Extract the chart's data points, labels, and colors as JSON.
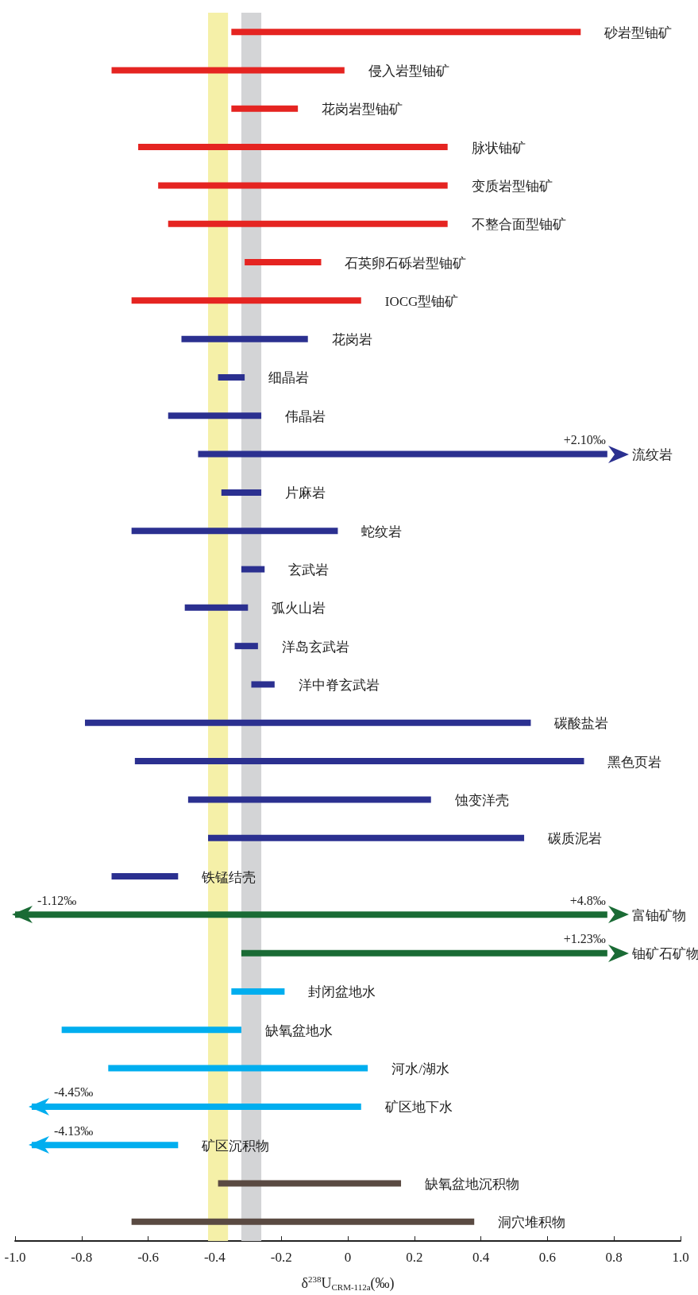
{
  "chart_data": {
    "type": "bar",
    "orientation": "horizontal",
    "xlabel": "δ$^{238}$U$_{CRM-112a}$(‰)",
    "categories": [
      "砂岩型铀矿",
      "侵入岩型铀矿",
      "花岗岩型铀矿",
      "脉状铀矿",
      "变质岩型铀矿",
      "不整合面型铀矿",
      "石英卵石砾岩型铀矿",
      "IOCG型铀矿",
      "花岗岩",
      "细晶岩",
      "伟晶岩",
      "流纹岩",
      "片麻岩",
      "蛇纹岩",
      "玄武岩",
      "弧火山岩",
      "洋岛玄武岩",
      "洋中脊玄武岩",
      "碳酸盐岩",
      "黑色页岩",
      "蚀变洋壳",
      "碳质泥岩",
      "铁锰结壳",
      "富铀矿物",
      "铀矿石矿物",
      "封闭盆地水",
      "缺氧盆地水",
      "河水/湖水",
      "矿区地下水",
      "矿区沉积物",
      "缺氧盆地沉积物",
      "洞穴堆积物"
    ],
    "base": [
      -0.35,
      -0.71,
      -0.35,
      -0.63,
      -0.57,
      -0.54,
      -0.31,
      -0.65,
      -0.5,
      -0.39,
      -0.54,
      -0.45,
      -0.38,
      -0.65,
      -0.32,
      -0.49,
      -0.34,
      -0.29,
      -0.79,
      -0.64,
      -0.48,
      -0.42,
      -0.71,
      -1.0,
      -0.32,
      -0.35,
      -0.86,
      -0.72,
      -0.95,
      -0.95,
      -0.39,
      -0.65
    ],
    "values": [
      1.05,
      0.7,
      0.2,
      0.93,
      0.87,
      0.84,
      0.23,
      0.69,
      0.38,
      0.08,
      0.28,
      1.23,
      0.12,
      0.62,
      0.07,
      0.19,
      0.07,
      0.07,
      1.34,
      1.35,
      0.73,
      0.95,
      0.2,
      1.78,
      1.1,
      0.16,
      0.54,
      0.78,
      0.99,
      0.44,
      0.55,
      1.03
    ],
    "colors": [
      "#e52421",
      "#e52421",
      "#e52421",
      "#e52421",
      "#e52421",
      "#e52421",
      "#e52421",
      "#e52421",
      "#2b3090",
      "#2b3090",
      "#2b3090",
      "#2b3090",
      "#2b3090",
      "#2b3090",
      "#2b3090",
      "#2b3090",
      "#2b3090",
      "#2b3090",
      "#2b3090",
      "#2b3090",
      "#2b3090",
      "#2b3090",
      "#2b3090",
      "#1a6b35",
      "#1a6b35",
      "#00aeef",
      "#00aeef",
      "#00aeef",
      "#00aeef",
      "#00aeef",
      "#5a4a42",
      "#5a4a42"
    ],
    "xlim": [
      -1.0,
      1.0
    ],
    "xticks": [
      {
        "value": -1.0,
        "label": "-1.0"
      },
      -0.8,
      -0.6,
      -0.4,
      -0.2,
      0,
      0.2,
      0.4,
      0.6,
      0.8,
      {
        "value": 1.0,
        "label": "1.0"
      }
    ],
    "bands": [
      {
        "axis": "x",
        "from": -0.42,
        "to": -0.36,
        "color": "#f5f0a8"
      },
      {
        "axis": "x",
        "from": -0.32,
        "to": -0.26,
        "color": "#d3d4d6"
      }
    ],
    "annotations": [
      {
        "text": "+2.10‰",
        "x": 0.78,
        "y": "流纹岩"
      },
      {
        "text": "-1.12‰",
        "x": -1.0,
        "y": "富铀矿物"
      },
      {
        "text": "+4.8‰",
        "x": 0.78,
        "y": "富铀矿物"
      },
      {
        "text": "+1.23‰",
        "x": 0.78,
        "y": "铀矿石矿物"
      },
      {
        "text": "-4.45‰",
        "x": -0.95,
        "y": "矿区地下水"
      },
      {
        "text": "-4.13‰",
        "x": -0.95,
        "y": "矿区沉积物"
      }
    ]
  }
}
